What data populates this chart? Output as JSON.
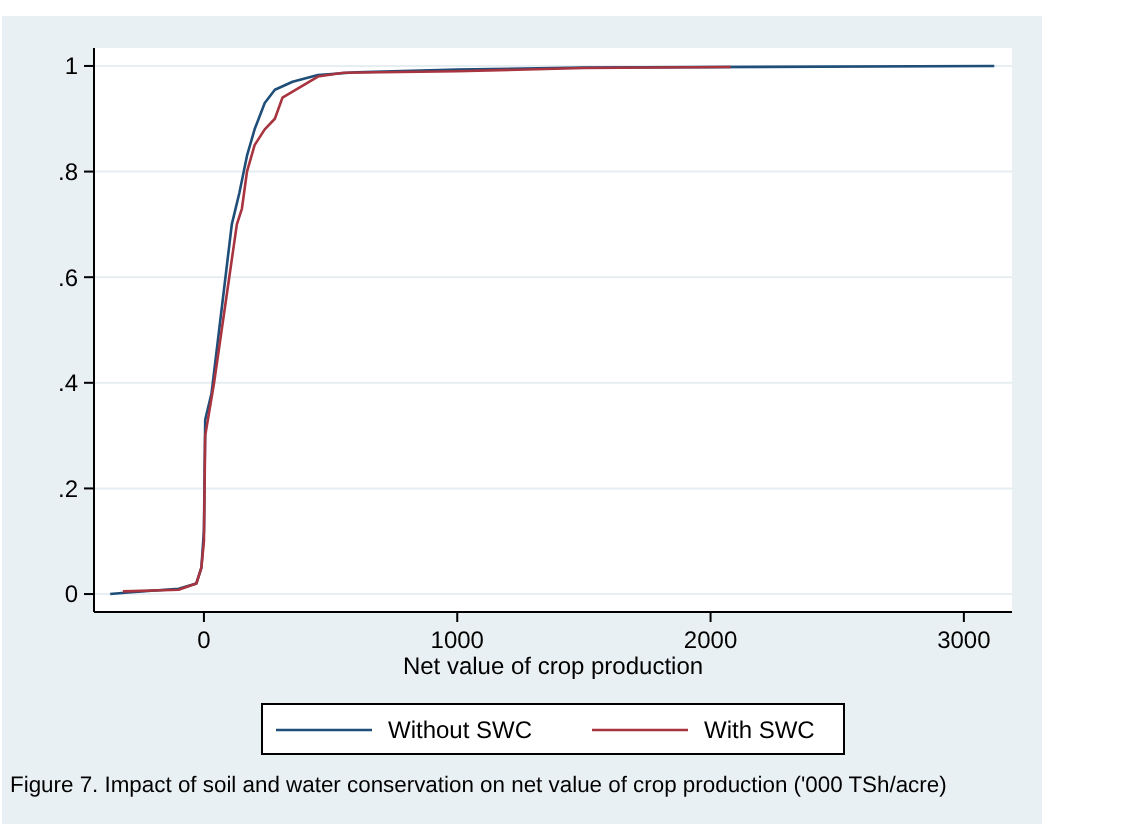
{
  "chart_data": {
    "type": "line",
    "xlabel": "Net value of crop production",
    "annotations": [
      "Figure 7. Impact of soil and water conservation on net value of crop production ('000 TSh/acre)"
    ],
    "xlim": [
      -434,
      3190
    ],
    "ylim": [
      -0.034,
      1.034
    ],
    "xticks": [
      0,
      1000,
      2000,
      3000
    ],
    "yticks": [
      0,
      {
        "value": 0.2,
        "label": ".2"
      },
      {
        "value": 0.4,
        "label": ".4"
      },
      {
        "value": 0.6,
        "label": ".6"
      },
      {
        "value": 0.8,
        "label": ".8"
      },
      1
    ],
    "grid": "y",
    "legend": "bottom",
    "marker": "none",
    "line_style": "solid",
    "series": [
      {
        "name": "Without SWC",
        "color": "#1f4e79",
        "x": [
          -370,
          -300,
          -100,
          -30,
          -10,
          0,
          5,
          30,
          60,
          90,
          110,
          140,
          170,
          200,
          240,
          280,
          350,
          450,
          600,
          1000,
          1500,
          3120
        ],
        "values": [
          0,
          0.003,
          0.01,
          0.02,
          0.05,
          0.12,
          0.33,
          0.38,
          0.5,
          0.62,
          0.7,
          0.76,
          0.83,
          0.88,
          0.93,
          0.955,
          0.97,
          0.983,
          0.988,
          0.993,
          0.997,
          1
        ]
      },
      {
        "name": "With SWC",
        "color": "#a83440",
        "x": [
          -320,
          -100,
          -30,
          -10,
          0,
          5,
          40,
          70,
          100,
          130,
          150,
          170,
          200,
          240,
          280,
          310,
          380,
          450,
          550,
          1000,
          1500,
          2080
        ],
        "values": [
          0.005,
          0.008,
          0.02,
          0.05,
          0.1,
          0.3,
          0.4,
          0.5,
          0.6,
          0.7,
          0.73,
          0.8,
          0.85,
          0.88,
          0.9,
          0.94,
          0.96,
          0.98,
          0.987,
          0.99,
          0.996,
          0.998
        ]
      }
    ]
  }
}
